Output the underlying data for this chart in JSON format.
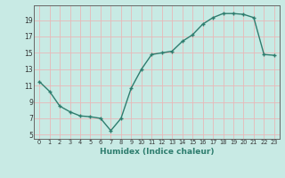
{
  "x": [
    0,
    1,
    2,
    3,
    4,
    5,
    6,
    7,
    8,
    9,
    10,
    11,
    12,
    13,
    14,
    15,
    16,
    17,
    18,
    19,
    20,
    21,
    22,
    23
  ],
  "y": [
    11.5,
    10.3,
    8.5,
    7.8,
    7.3,
    7.2,
    7.0,
    5.5,
    7.0,
    10.7,
    13.0,
    14.8,
    15.0,
    15.2,
    16.4,
    17.2,
    18.5,
    19.3,
    19.8,
    19.8,
    19.7,
    19.3,
    14.8,
    14.7
  ],
  "xlabel": "Humidex (Indice chaleur)",
  "bg_color": "#c8eae4",
  "grid_color_h": "#e8b8b8",
  "grid_color_v": "#e8b8b8",
  "line_color": "#2e7d6e",
  "ylim": [
    4.5,
    20.8
  ],
  "xlim": [
    -0.5,
    23.5
  ],
  "yticks": [
    5,
    7,
    9,
    11,
    13,
    15,
    17,
    19
  ],
  "xticks": [
    0,
    1,
    2,
    3,
    4,
    5,
    6,
    7,
    8,
    9,
    10,
    11,
    12,
    13,
    14,
    15,
    16,
    17,
    18,
    19,
    20,
    21,
    22,
    23
  ]
}
